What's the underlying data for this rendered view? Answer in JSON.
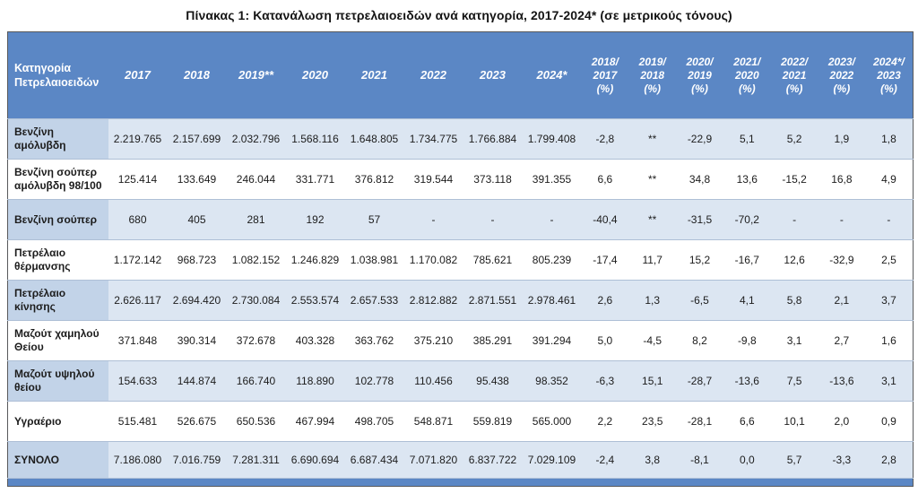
{
  "title": "Πίνακας 1: Κατανάλωση πετρελαιοειδών ανά κατηγορία, 2017-2024* (σε μετρικούς τόνους)",
  "colors": {
    "header_bg": "#5b87c5",
    "stripe_bg": "#dce6f2",
    "stripe_label_bg": "#c2d3e8",
    "header_text": "#ffffff",
    "body_text": "#1c1c1c",
    "grid_line": "#aebfd6",
    "outer_border": "#58595b"
  },
  "table": {
    "category_header": "Κατηγορία\nΠετρελαιοειδών",
    "year_columns": [
      "2017",
      "2018",
      "2019**",
      "2020",
      "2021",
      "2022",
      "2023",
      "2024*"
    ],
    "pct_columns": [
      "2018/\n2017\n(%)",
      "2019/\n2018\n(%)",
      "2020/\n2019\n(%)",
      "2021/\n2020\n(%)",
      "2022/\n2021\n(%)",
      "2023/\n2022\n(%)",
      "2024*/\n2023\n(%)"
    ],
    "rows": [
      {
        "label": "Βενζίνη αμόλυβδη",
        "values": [
          "2.219.765",
          "2.157.699",
          "2.032.796",
          "1.568.116",
          "1.648.805",
          "1.734.775",
          "1.766.884",
          "1.799.408",
          "-2,8",
          "**",
          "-22,9",
          "5,1",
          "5,2",
          "1,9",
          "1,8"
        ]
      },
      {
        "label": "Βενζίνη σούπερ αμόλυβδη 98/100",
        "values": [
          "125.414",
          "133.649",
          "246.044",
          "331.771",
          "376.812",
          "319.544",
          "373.118",
          "391.355",
          "6,6",
          "**",
          "34,8",
          "13,6",
          "-15,2",
          "16,8",
          "4,9"
        ]
      },
      {
        "label": "Βενζίνη σούπερ",
        "values": [
          "680",
          "405",
          "281",
          "192",
          "57",
          "-",
          "-",
          "-",
          "-40,4",
          "**",
          "-31,5",
          "-70,2",
          "-",
          "-",
          "-"
        ]
      },
      {
        "label": "Πετρέλαιο θέρμανσης",
        "values": [
          "1.172.142",
          "968.723",
          "1.082.152",
          "1.246.829",
          "1.038.981",
          "1.170.082",
          "785.621",
          "805.239",
          "-17,4",
          "11,7",
          "15,2",
          "-16,7",
          "12,6",
          "-32,9",
          "2,5"
        ]
      },
      {
        "label": "Πετρέλαιο κίνησης",
        "values": [
          "2.626.117",
          "2.694.420",
          "2.730.084",
          "2.553.574",
          "2.657.533",
          "2.812.882",
          "2.871.551",
          "2.978.461",
          "2,6",
          "1,3",
          "-6,5",
          "4,1",
          "5,8",
          "2,1",
          "3,7"
        ]
      },
      {
        "label": "Μαζούτ χαμηλού Θείου",
        "values": [
          "371.848",
          "390.314",
          "372.678",
          "403.328",
          "363.762",
          "375.210",
          "385.291",
          "391.294",
          "5,0",
          "-4,5",
          "8,2",
          "-9,8",
          "3,1",
          "2,7",
          "1,6"
        ]
      },
      {
        "label": "Μαζούτ υψηλού θείου",
        "values": [
          "154.633",
          "144.874",
          "166.740",
          "118.890",
          "102.778",
          "110.456",
          "95.438",
          "98.352",
          "-6,3",
          "15,1",
          "-28,7",
          "-13,6",
          "7,5",
          "-13,6",
          "3,1"
        ]
      },
      {
        "label": "Υγραέριο",
        "values": [
          "515.481",
          "526.675",
          "650.536",
          "467.994",
          "498.705",
          "548.871",
          "559.819",
          "565.000",
          "2,2",
          "23,5",
          "-28,1",
          "6,6",
          "10,1",
          "2,0",
          "0,9"
        ]
      },
      {
        "label": "ΣΥΝΟΛΟ",
        "values": [
          "7.186.080",
          "7.016.759",
          "7.281.311",
          "6.690.694",
          "6.687.434",
          "7.071.820",
          "6.837.722",
          "7.029.109",
          "-2,4",
          "3,8",
          "-8,1",
          "0,0",
          "5,7",
          "-3,3",
          "2,8"
        ]
      }
    ]
  }
}
